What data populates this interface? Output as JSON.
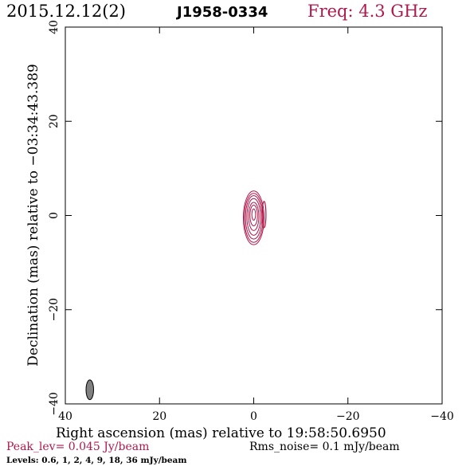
{
  "header": {
    "date": "2015.12.12(2)",
    "source": "J1958-0334",
    "freq": "Freq: 4.3 GHz"
  },
  "footer": {
    "peak": "Peak_lev=  0.045 Jy/beam",
    "rms": "Rms_noise=  0.1 mJy/beam",
    "levels": "Levels: 0.6,   1,   2,   4,   9,  18,  36 mJy/beam"
  },
  "colors": {
    "freq": "#b0184a",
    "peak": "#b0184a",
    "contour": "#b0184a",
    "beam_fill": "#808080"
  },
  "chart_data": {
    "type": "contour",
    "xlabel": "Right ascension (mas) relative to 19:58:50.6950",
    "ylabel": "Declination (mas) relative to −03:34:43.389",
    "xlim": [
      40,
      -40
    ],
    "ylim": [
      -40,
      40
    ],
    "xticks": [
      40,
      20,
      0,
      -20,
      -40
    ],
    "xtick_labels": [
      "40",
      "20",
      "0",
      "−20",
      "−40"
    ],
    "yticks": [
      -40,
      -20,
      0,
      20,
      40
    ],
    "ytick_labels": [
      "−40",
      "−20",
      "0",
      "20",
      "40"
    ],
    "contour_levels_mJy": [
      0.6,
      1,
      2,
      4,
      9,
      18,
      36
    ],
    "contours": [
      {
        "level": 0.6,
        "cx": 0,
        "cy": -0.5,
        "rx": 2.2,
        "ry": 5.7
      },
      {
        "level": 1,
        "cx": 0,
        "cy": -0.5,
        "rx": 2.0,
        "ry": 5.2
      },
      {
        "level": 2,
        "cx": 0,
        "cy": -0.4,
        "rx": 1.75,
        "ry": 4.6
      },
      {
        "level": 4,
        "cx": 0,
        "cy": -0.3,
        "rx": 1.45,
        "ry": 3.9
      },
      {
        "level": 9,
        "cx": 0,
        "cy": -0.2,
        "rx": 1.1,
        "ry": 3.0
      },
      {
        "level": 18,
        "cx": 0,
        "cy": 0.0,
        "rx": 0.8,
        "ry": 2.2
      },
      {
        "level": 36,
        "cx": 0,
        "cy": 0.2,
        "rx": 0.4,
        "ry": 1.2
      }
    ],
    "secondary_component": {
      "cx": -2.2,
      "cy": 0.2,
      "rx": 0.4,
      "ry": 2.8
    },
    "beam": {
      "cx": 34.8,
      "cy": -37.0,
      "rx": 0.8,
      "ry": 2.1
    }
  }
}
